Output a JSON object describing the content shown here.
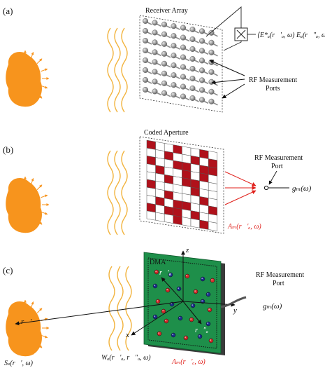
{
  "panels": [
    {
      "label": "(a)",
      "array_title": "Receiver Array",
      "correlation_expr": "⟨E*ₐ(r⃗′ₐ, ω) Eₐ(r⃗″ₐ, ω)⟩",
      "ports_label_1": "RF Measurement",
      "ports_label_2": "Ports"
    },
    {
      "label": "(b)",
      "aperture_title": "Coded Aperture",
      "port_label_1": "RF Measurement",
      "port_label_2": "Port",
      "output_expr": "gₘ(ω)",
      "mask_expr": "Aₘ(r⃗′ₐ, ω)",
      "mask_grid": [
        "10010010",
        "00100101",
        "10011011",
        "01001010",
        "00101100",
        "10000100",
        "00100010",
        "01011001",
        "10110100",
        "00010010"
      ]
    },
    {
      "label": "(c)",
      "dma_title": "DMA",
      "port_label_1": "RF Measurement",
      "port_label_2": "Port",
      "output_expr": "gₘ(ω)",
      "source_vec": "r⃗′",
      "source_expr": "Sₛ(r⃗′, ω)",
      "weight_expr": "Wₐ(r⃗′ₐ, r⃗″ₐ, ω)",
      "mask_expr": "Aₘ(r⃗′ₐ, ω)",
      "vec_a1": "r⃗′ₐ",
      "vec_a2": "r⃗″ₐ",
      "axis_x": "x",
      "axis_y": "y",
      "axis_z": "z"
    }
  ],
  "colors": {
    "source": "#F7941D",
    "wave": "#F2B33D",
    "mask": "#B0111B",
    "dma_board": "#1E8F4A",
    "accent_red": "#E0201B"
  },
  "icons": [
    "multiplier-box-icon",
    "rf-port-icon"
  ]
}
